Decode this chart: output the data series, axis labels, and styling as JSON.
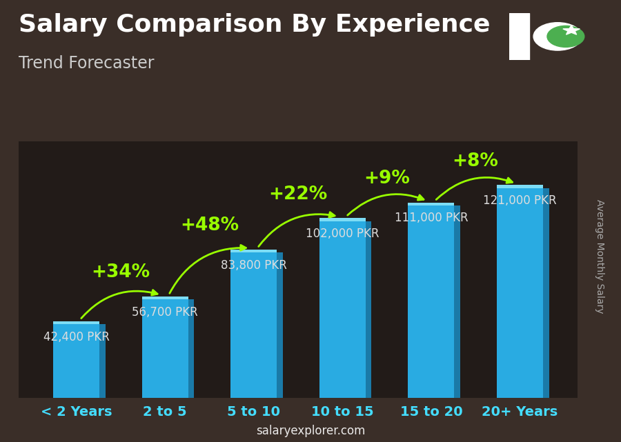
{
  "title": "Salary Comparison By Experience",
  "subtitle": "Trend Forecaster",
  "ylabel": "Average Monthly Salary",
  "watermark": "salaryexplorer.com",
  "categories": [
    "< 2 Years",
    "2 to 5",
    "5 to 10",
    "10 to 15",
    "15 to 20",
    "20+ Years"
  ],
  "values": [
    42400,
    56700,
    83800,
    102000,
    111000,
    121000
  ],
  "value_labels": [
    "42,400 PKR",
    "56,700 PKR",
    "83,800 PKR",
    "102,000 PKR",
    "111,000 PKR",
    "121,000 PKR"
  ],
  "pct_changes": [
    null,
    "+34%",
    "+48%",
    "+22%",
    "+9%",
    "+8%"
  ],
  "bar_color_face": "#29ABE2",
  "bar_color_dark": "#1A7AA8",
  "bar_color_top": "#7DDDF5",
  "pct_color": "#99FF00",
  "value_label_color": "#DDDDDD",
  "title_color": "#FFFFFF",
  "subtitle_color": "#CCCCCC",
  "xlabel_color": "#44DDFF",
  "ylabel_color": "#AAAAAA",
  "watermark_color": "#FFFFFF",
  "bg_color": "#3a2e28",
  "ylim": [
    0,
    148000
  ],
  "title_fontsize": 26,
  "subtitle_fontsize": 17,
  "pct_fontsize": 19,
  "value_fontsize": 12,
  "xlabel_fontsize": 14,
  "bar_width": 0.52
}
